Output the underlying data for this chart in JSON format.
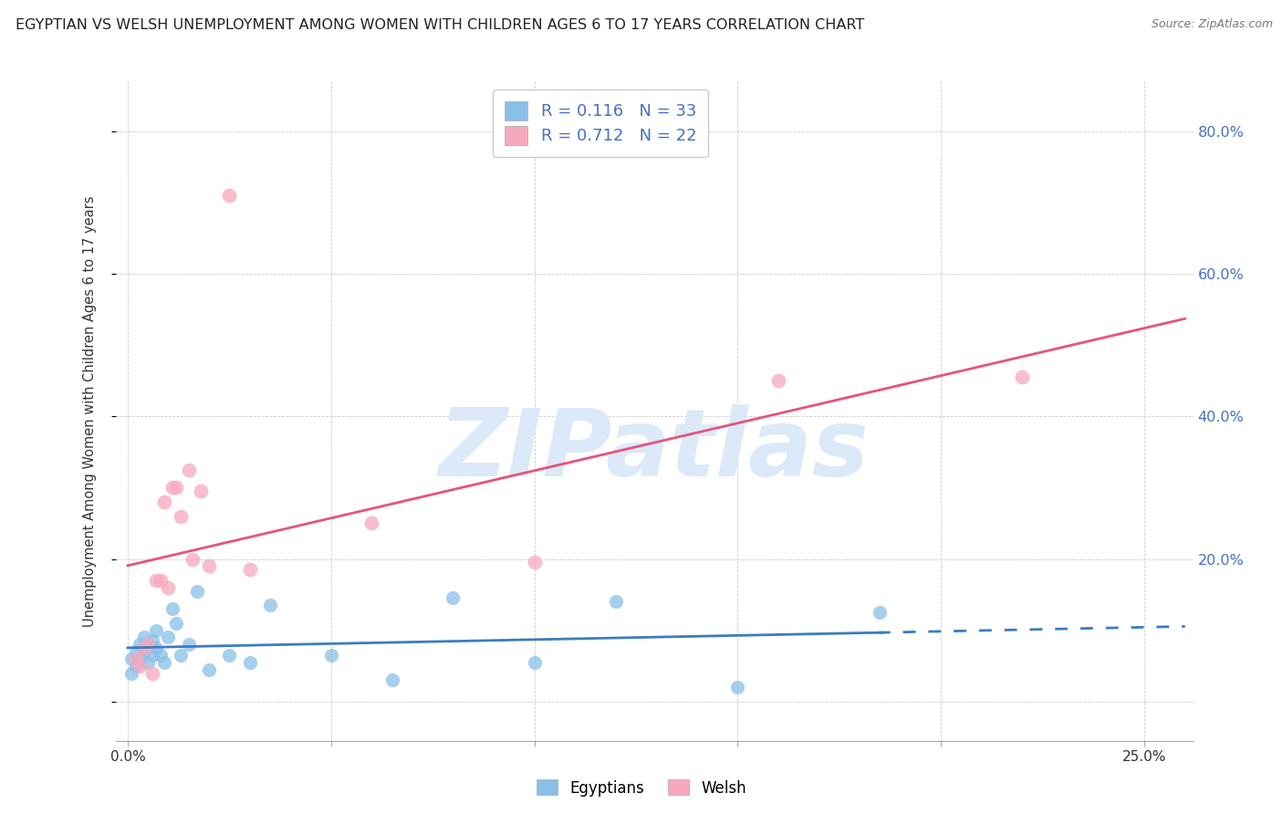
{
  "title": "EGYPTIAN VS WELSH UNEMPLOYMENT AMONG WOMEN WITH CHILDREN AGES 6 TO 17 YEARS CORRELATION CHART",
  "source": "Source: ZipAtlas.com",
  "ylabel": "Unemployment Among Women with Children Ages 6 to 17 years",
  "xlim": [
    -0.003,
    0.262
  ],
  "ylim": [
    -0.055,
    0.87
  ],
  "egyptians_x": [
    0.001,
    0.001,
    0.002,
    0.002,
    0.003,
    0.003,
    0.004,
    0.004,
    0.005,
    0.005,
    0.006,
    0.006,
    0.007,
    0.007,
    0.008,
    0.009,
    0.01,
    0.011,
    0.012,
    0.013,
    0.015,
    0.017,
    0.02,
    0.025,
    0.03,
    0.035,
    0.05,
    0.065,
    0.08,
    0.1,
    0.12,
    0.15,
    0.185
  ],
  "egyptians_y": [
    0.04,
    0.06,
    0.05,
    0.07,
    0.06,
    0.08,
    0.07,
    0.09,
    0.055,
    0.075,
    0.065,
    0.085,
    0.1,
    0.075,
    0.065,
    0.055,
    0.09,
    0.13,
    0.11,
    0.065,
    0.08,
    0.155,
    0.045,
    0.065,
    0.055,
    0.135,
    0.065,
    0.03,
    0.145,
    0.055,
    0.14,
    0.02,
    0.125
  ],
  "welsh_x": [
    0.002,
    0.003,
    0.004,
    0.005,
    0.006,
    0.007,
    0.008,
    0.009,
    0.01,
    0.011,
    0.012,
    0.013,
    0.015,
    0.016,
    0.018,
    0.02,
    0.025,
    0.03,
    0.06,
    0.1,
    0.16,
    0.22
  ],
  "welsh_y": [
    0.06,
    0.05,
    0.075,
    0.08,
    0.04,
    0.17,
    0.17,
    0.28,
    0.16,
    0.3,
    0.3,
    0.26,
    0.325,
    0.2,
    0.295,
    0.19,
    0.71,
    0.185,
    0.25,
    0.195,
    0.45,
    0.455
  ],
  "R_egyptian": 0.116,
  "N_egyptian": 33,
  "R_welsh": 0.712,
  "N_welsh": 22,
  "color_egyptian": "#88c0e8",
  "color_welsh": "#f8a8be",
  "color_trendline_egyptian": "#3a7dc0",
  "color_trendline_welsh": "#e8527a",
  "color_axis_right": "#4472C4",
  "watermark_text": "ZIPatlas",
  "watermark_color": "#dce9f8",
  "background_color": "#ffffff",
  "grid_color": "#c8c8c8",
  "legend_R_color": "#4472C4",
  "legend_N_color": "#FF0000"
}
